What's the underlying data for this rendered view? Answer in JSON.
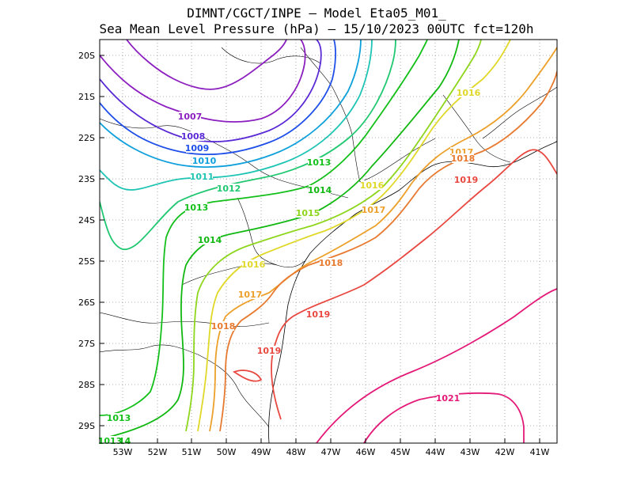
{
  "title": {
    "line1": "DIMNT/CGCT/INPE –  Model Eta05_M01_",
    "line2": "Sea Mean Level Pressure (hPa) – 15/10/2023 00UTC fct=120h"
  },
  "axes": {
    "lon_ticks": [
      "53W",
      "52W",
      "51W",
      "50W",
      "49W",
      "48W",
      "47W",
      "46W",
      "45W",
      "44W",
      "43W",
      "42W",
      "41W"
    ],
    "lat_ticks": [
      "20S",
      "21S",
      "22S",
      "23S",
      "24S",
      "25S",
      "26S",
      "27S",
      "28S",
      "29S"
    ]
  },
  "colors": {
    "1007": "#8c1fbf",
    "1008": "#5a2ad6",
    "1009": "#1f4fe8",
    "1010": "#0fa0dc",
    "1011": "#1ec4b4",
    "1012": "#1fc870",
    "1013": "#13c01a",
    "1014": "#10b810",
    "1015": "#8ed61c",
    "1016": "#e0d828",
    "1017": "#eca02a",
    "1018": "#e87a30",
    "1019": "#e84840",
    "1021": "#e41a78",
    "grid": "#999999",
    "coast": "#000000"
  },
  "contour_labels": [
    {
      "text": "1007",
      "level": "1007"
    },
    {
      "text": "1008",
      "level": "1008"
    },
    {
      "text": "1009",
      "level": "1009"
    },
    {
      "text": "1010",
      "level": "1010"
    },
    {
      "text": "1011",
      "level": "1011"
    },
    {
      "text": "1012",
      "level": "1012"
    },
    {
      "text": "1013",
      "level": "1013"
    },
    {
      "text": "1014",
      "level": "1014"
    },
    {
      "text": "1013",
      "level": "1013"
    },
    {
      "text": "1014",
      "level": "1014"
    },
    {
      "text": "1015",
      "level": "1015"
    },
    {
      "text": "1016",
      "level": "1016"
    },
    {
      "text": "1017",
      "level": "1017"
    },
    {
      "text": "1018",
      "level": "1018"
    },
    {
      "text": "1016",
      "level": "1016"
    },
    {
      "text": "1017",
      "level": "1017"
    },
    {
      "text": "1018",
      "level": "1018"
    },
    {
      "text": "1019",
      "level": "1019"
    },
    {
      "text": "1016",
      "level": "1016"
    },
    {
      "text": "1017",
      "level": "1017"
    },
    {
      "text": "1018",
      "level": "1018"
    },
    {
      "text": "1019",
      "level": "1019"
    },
    {
      "text": "1019",
      "level": "1019"
    },
    {
      "text": "1021",
      "level": "1021"
    },
    {
      "text": "1013",
      "level": "1013"
    },
    {
      "text": "1014",
      "level": "1014"
    },
    {
      "text": "1013",
      "level": "1013"
    }
  ]
}
